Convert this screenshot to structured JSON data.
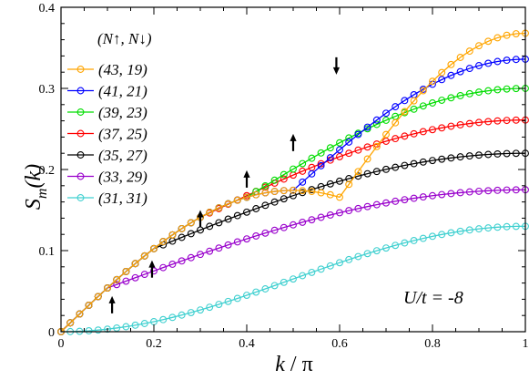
{
  "chart_data": {
    "type": "line",
    "ylabel_main": "S",
    "ylabel_sub": "m",
    "ylabel_args": "(k)",
    "xlabel_main": "k",
    "xlabel_rest": " / π",
    "xlim": [
      0,
      1
    ],
    "ylim": [
      0,
      0.4
    ],
    "x_ticks": [
      "0",
      "0.2",
      "0.4",
      "0.6",
      "0.8",
      "1"
    ],
    "y_ticks": [
      "0",
      "0.1",
      "0.2",
      "0.3",
      "0.4"
    ],
    "legend_title": "(N↑, N↓)",
    "legend_placement": "top-left",
    "annotation": "U/t = -8",
    "n_points": 51,
    "series": [
      {
        "name": "(43, 19)",
        "color": "#ffa500",
        "kink": 0.6,
        "slope": 0.5477,
        "end": 0.368
      },
      {
        "name": "(41, 21)",
        "color": "#0000ff",
        "kink": 0.5,
        "slope": 0.5477,
        "end": 0.336
      },
      {
        "name": "(39, 23)",
        "color": "#00dd00",
        "kink": 0.4,
        "slope": 0.5477,
        "end": 0.3
      },
      {
        "name": "(37, 25)",
        "color": "#ff0000",
        "kink": 0.3,
        "slope": 0.5477,
        "end": 0.261
      },
      {
        "name": "(35, 27)",
        "color": "#000000",
        "kink": 0.2,
        "slope": 0.5477,
        "end": 0.22
      },
      {
        "name": "(33, 29)",
        "color": "#9900cc",
        "kink": 0.1,
        "slope": 0.5477,
        "end": 0.175
      },
      {
        "name": "(31, 31)",
        "color": "#40d0d0",
        "kink": 0.0,
        "slope": 0.5477,
        "end": 0.13
      }
    ],
    "arrows": [
      {
        "x": 0.11,
        "y_tip": 0.044,
        "direction": "up"
      },
      {
        "x": 0.196,
        "y_tip": 0.088,
        "direction": "up"
      },
      {
        "x": 0.3,
        "y_tip": 0.15,
        "direction": "up"
      },
      {
        "x": 0.4,
        "y_tip": 0.199,
        "direction": "up"
      },
      {
        "x": 0.5,
        "y_tip": 0.244,
        "direction": "up"
      },
      {
        "x": 0.593,
        "y_tip": 0.317,
        "direction": "down"
      }
    ]
  }
}
